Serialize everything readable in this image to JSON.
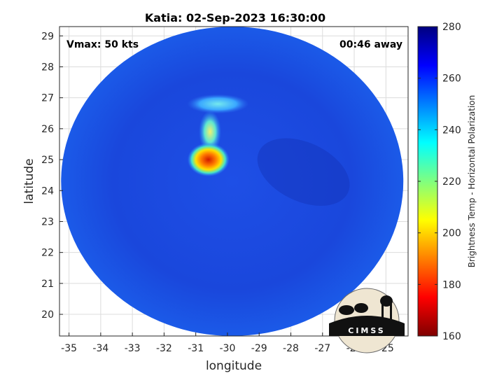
{
  "chart_data": {
    "type": "heatmap",
    "title": "Katia: 02-Sep-2023 16:30:00",
    "xlabel": "longitude",
    "ylabel": "latitude",
    "xlim": [
      -35.3,
      -24.3
    ],
    "ylim": [
      19.3,
      29.3
    ],
    "xticks": [
      -35,
      -34,
      -33,
      -32,
      -31,
      -30,
      -29,
      -28,
      -27,
      -26,
      -25
    ],
    "yticks": [
      20,
      21,
      22,
      23,
      24,
      25,
      26,
      27,
      28,
      29
    ],
    "grid": true,
    "swath": {
      "center": [
        -29.85,
        24.3
      ],
      "radius_lon": 5.4,
      "radius_lat": 5.0
    },
    "features": [
      {
        "name": "outer-cloud-band",
        "lon": -30.3,
        "lat": 26.8,
        "value": 245
      },
      {
        "name": "cold-core",
        "lon": -30.6,
        "lat": 25.0,
        "value": 190
      },
      {
        "name": "band-segment",
        "lon": -30.55,
        "lat": 25.9,
        "value": 225
      }
    ],
    "colorbar": {
      "label": "Brightness Temp - Horizontal Polarization",
      "min": 160,
      "max": 280,
      "ticks": [
        160,
        180,
        200,
        220,
        240,
        260,
        280
      ],
      "colormap": "jet"
    },
    "annotations": {
      "vmax": "Vmax: 50 kts",
      "away": "00:46 away"
    }
  },
  "logo": {
    "text": "CIMSS"
  },
  "colors": {
    "background": "#ffffff",
    "field": "#1a4ee0",
    "warm_core": "#d42000",
    "axis": "#262626",
    "grid": "#d9d9d9"
  }
}
